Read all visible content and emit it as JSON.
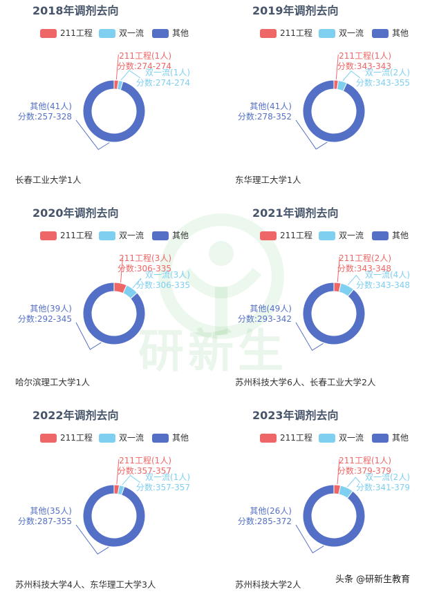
{
  "legend": {
    "items": [
      {
        "label": "211工程",
        "color": "#ee6666"
      },
      {
        "label": "双一流",
        "color": "#7ecff0"
      },
      {
        "label": "其他",
        "color": "#5470c6"
      }
    ]
  },
  "watermark": "研新生",
  "credit": "头条 @研新生教育",
  "chart_data": [
    {
      "type": "pie",
      "title": "2018年调剂去向",
      "categories": [
        "211工程",
        "双一流",
        "其他"
      ],
      "values": [
        1,
        1,
        41
      ],
      "labels": [
        {
          "name": "211工程(1人)",
          "score": "分数:274-274"
        },
        {
          "name": "双一流(1人)",
          "score": "分数:274-274"
        },
        {
          "name": "其他(41人)",
          "score": "分数:257-328"
        }
      ],
      "destinations": "长春工业大学1人"
    },
    {
      "type": "pie",
      "title": "2019年调剂去向",
      "categories": [
        "211工程",
        "双一流",
        "其他"
      ],
      "values": [
        1,
        2,
        41
      ],
      "labels": [
        {
          "name": "211工程(1人)",
          "score": "分数:343-343"
        },
        {
          "name": "双一流(2人)",
          "score": "分数:343-355"
        },
        {
          "name": "其他(41人)",
          "score": "分数:278-352"
        }
      ],
      "destinations": "东华理工大学1人"
    },
    {
      "type": "pie",
      "title": "2020年调剂去向",
      "categories": [
        "211工程",
        "双一流",
        "其他"
      ],
      "values": [
        3,
        3,
        39
      ],
      "labels": [
        {
          "name": "211工程(3人)",
          "score": "分数:306-335"
        },
        {
          "name": "双一流(3人)",
          "score": "分数:306-335"
        },
        {
          "name": "其他(39人)",
          "score": "分数:292-345"
        }
      ],
      "destinations": "哈尔滨理工大学1人"
    },
    {
      "type": "pie",
      "title": "2021年调剂去向",
      "categories": [
        "211工程",
        "双一流",
        "其他"
      ],
      "values": [
        2,
        4,
        49
      ],
      "labels": [
        {
          "name": "211工程(2人)",
          "score": "分数:343-348"
        },
        {
          "name": "双一流(4人)",
          "score": "分数:343-348"
        },
        {
          "name": "其他(49人)",
          "score": "分数:293-342"
        }
      ],
      "destinations": "苏州科技大学6人、长春工业大学2人"
    },
    {
      "type": "pie",
      "title": "2022年调剂去向",
      "categories": [
        "211工程",
        "双一流",
        "其他"
      ],
      "values": [
        1,
        1,
        35
      ],
      "labels": [
        {
          "name": "211工程(1人)",
          "score": "分数:357-357"
        },
        {
          "name": "双一流(1人)",
          "score": "分数:357-357"
        },
        {
          "name": "其他(35人)",
          "score": "分数:287-355"
        }
      ],
      "destinations": "苏州科技大学4人、东华理工大学3人"
    },
    {
      "type": "pie",
      "title": "2023年调剂去向",
      "categories": [
        "211工程",
        "双一流",
        "其他"
      ],
      "values": [
        1,
        2,
        26
      ],
      "labels": [
        {
          "name": "211工程(1人)",
          "score": "分数:379-379"
        },
        {
          "name": "双一流(2人)",
          "score": "分数:341-379"
        },
        {
          "name": "其他(26人)",
          "score": "分数:285-372"
        }
      ],
      "destinations": "苏州科技大学2人"
    }
  ]
}
